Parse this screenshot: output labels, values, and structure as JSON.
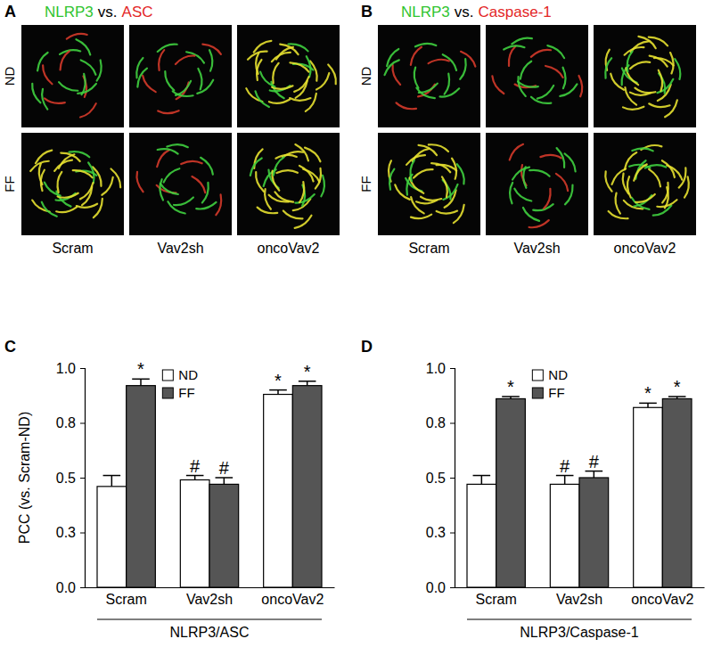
{
  "image_panels": [
    {
      "label": "A",
      "title": [
        {
          "text": "NLRP3",
          "color": "#2fc42f"
        },
        {
          "text": "vs.",
          "color": "#000000"
        },
        {
          "text": "ASC",
          "color": "#e32626"
        }
      ],
      "rows": [
        "ND",
        "FF"
      ],
      "columns": [
        "Scram",
        "Vav2sh",
        "oncoVav2"
      ]
    },
    {
      "label": "B",
      "title": [
        {
          "text": "NLRP3",
          "color": "#2fc42f"
        },
        {
          "text": "vs.",
          "color": "#000000"
        },
        {
          "text": "Caspase-1",
          "color": "#e32626"
        }
      ],
      "rows": [
        "ND",
        "FF"
      ],
      "columns": [
        "Scram",
        "Vav2sh",
        "oncoVav2"
      ]
    }
  ],
  "chart_data": [
    {
      "type": "bar",
      "label": "C",
      "ylabel": "PCC (vs. Scram-ND)",
      "xlabel": "NLRP3/ASC",
      "categories": [
        "Scram",
        "Vav2sh",
        "oncoVav2"
      ],
      "series": [
        {
          "name": "ND",
          "color": "#ffffff",
          "values": [
            0.46,
            0.49,
            0.88
          ],
          "errors": [
            0.05,
            0.02,
            0.02
          ],
          "annotations": [
            null,
            "#",
            "*"
          ]
        },
        {
          "name": "FF",
          "color": "#555555",
          "values": [
            0.92,
            0.47,
            0.92
          ],
          "errors": [
            0.03,
            0.03,
            0.02
          ],
          "annotations": [
            "*",
            "#",
            "*"
          ]
        }
      ],
      "ylim": [
        0,
        1
      ],
      "yticks": [
        {
          "value": 0,
          "label": "0.0"
        },
        {
          "value": 0.25,
          "label": "0.3"
        },
        {
          "value": 0.5,
          "label": "0.5"
        },
        {
          "value": 0.75,
          "label": "0.8"
        },
        {
          "value": 1,
          "label": "1.0"
        }
      ],
      "legend": "upper left"
    },
    {
      "type": "bar",
      "label": "D",
      "xlabel": "NLRP3/Caspase-1",
      "categories": [
        "Scram",
        "Vav2sh",
        "oncoVav2"
      ],
      "series": [
        {
          "name": "ND",
          "color": "#ffffff",
          "values": [
            0.47,
            0.47,
            0.82
          ],
          "errors": [
            0.04,
            0.04,
            0.02
          ],
          "annotations": [
            null,
            "#",
            "*"
          ]
        },
        {
          "name": "FF",
          "color": "#555555",
          "values": [
            0.86,
            0.5,
            0.86
          ],
          "errors": [
            0.01,
            0.03,
            0.01
          ],
          "annotations": [
            "*",
            "#",
            "*"
          ]
        }
      ],
      "ylim": [
        0,
        1
      ],
      "yticks": [
        {
          "value": 0,
          "label": "0.0"
        },
        {
          "value": 0.25,
          "label": "0.3"
        },
        {
          "value": 0.5,
          "label": "0.5"
        },
        {
          "value": 0.75,
          "label": "0.8"
        },
        {
          "value": 1,
          "label": "1.0"
        }
      ],
      "legend": "upper left"
    }
  ]
}
